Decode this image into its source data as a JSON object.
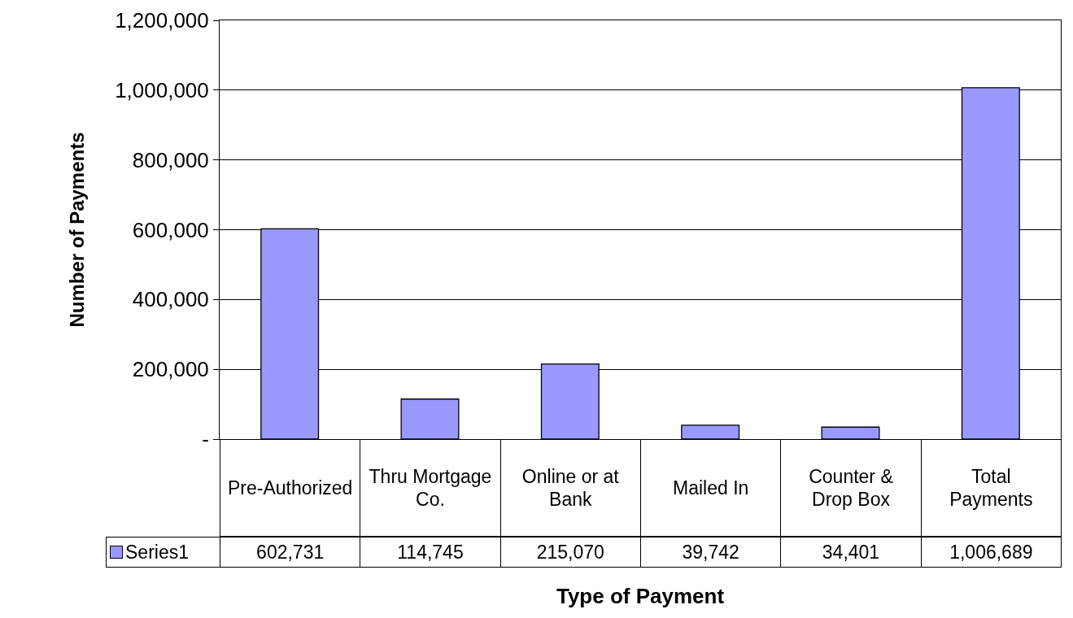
{
  "chart_data": {
    "type": "bar",
    "xlabel": "Type of Payment",
    "ylabel": "Number of Payments",
    "categories": [
      "Pre-Authorized",
      "Thru Mortgage Co.",
      "Online or at Bank",
      "Mailed In",
      "Counter & Drop Box",
      "Total Payments"
    ],
    "series": [
      {
        "name": "Series1",
        "color": "#9999ff",
        "values": [
          602731,
          114745,
          215070,
          39742,
          34401,
          1006689
        ],
        "value_labels": [
          "602,731",
          "114,745",
          "215,070",
          "39,742",
          "34,401",
          "1,006,689"
        ]
      }
    ],
    "ylim": [
      0,
      1200000
    ],
    "yticks": [
      {
        "value": 0,
        "label": "-"
      },
      {
        "value": 200000,
        "label": "200,000"
      },
      {
        "value": 400000,
        "label": "400,000"
      },
      {
        "value": 600000,
        "label": "600,000"
      },
      {
        "value": 800000,
        "label": "800,000"
      },
      {
        "value": 1000000,
        "label": "1,000,000"
      },
      {
        "value": 1200000,
        "label": "1,200,000"
      }
    ],
    "grid": "y",
    "legend": "bottom"
  }
}
